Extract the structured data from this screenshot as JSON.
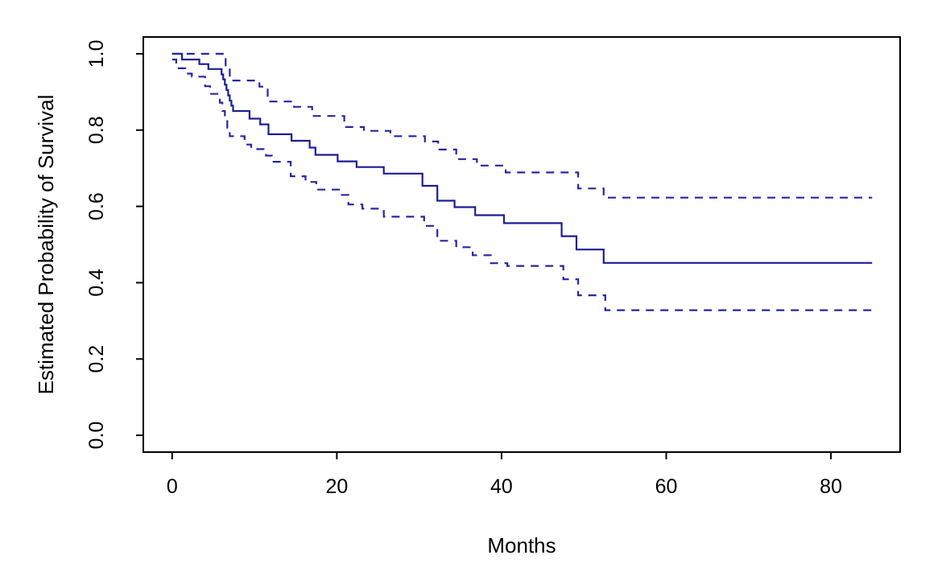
{
  "chart_data": {
    "type": "line",
    "subtype": "kaplan-meier-step-curve",
    "title": "",
    "xlabel": "Months",
    "ylabel": "Estimated Probability of Survival",
    "x_ticks": [
      0,
      20,
      40,
      60,
      80
    ],
    "y_ticks": [
      "0.0",
      "0.2",
      "0.4",
      "0.6",
      "0.8",
      "1.0"
    ],
    "xlim": [
      -3.5,
      88.4
    ],
    "ylim": [
      -0.044,
      1.044
    ],
    "x_axis_range_shown": [
      0,
      80
    ],
    "y_axis_range_shown": [
      0.0,
      1.0
    ],
    "end_of_follow_up_months": 85,
    "grid": false,
    "legend": null,
    "colors": {
      "curve": "#1d1d96",
      "ci": "#2626a6",
      "axis": "#000000",
      "background": "#ffffff"
    },
    "series": [
      {
        "name": "Kaplan-Meier survival estimate",
        "style": "solid",
        "x": [
          0,
          1.2,
          3.3,
          4.4,
          6.0,
          6.2,
          6.4,
          6.6,
          6.8,
          7.0,
          7.2,
          7.4,
          9.4,
          10.7,
          11.7,
          14.5,
          16.7,
          17.4,
          20.1,
          22.4,
          25.7,
          30.4,
          32.2,
          34.3,
          36.8,
          40.3,
          47.3,
          49.1,
          52.4
        ],
        "y": [
          1.0,
          0.985,
          0.973,
          0.96,
          0.946,
          0.933,
          0.919,
          0.905,
          0.891,
          0.877,
          0.864,
          0.85,
          0.83,
          0.815,
          0.789,
          0.772,
          0.754,
          0.735,
          0.718,
          0.703,
          0.686,
          0.654,
          0.615,
          0.598,
          0.577,
          0.556,
          0.522,
          0.487,
          0.452
        ],
        "final_value": 0.452
      },
      {
        "name": "Upper 95% confidence band",
        "style": "dashed",
        "x": [
          0,
          6.5,
          7.0,
          10.6,
          11.6,
          14.8,
          17.0,
          20.9,
          23.3,
          26.5,
          30.7,
          32.3,
          34.5,
          37.0,
          40.5,
          49.3,
          52.4
        ],
        "y": [
          1.0,
          0.965,
          0.93,
          0.914,
          0.875,
          0.861,
          0.837,
          0.808,
          0.798,
          0.784,
          0.77,
          0.749,
          0.724,
          0.707,
          0.689,
          0.647,
          0.623
        ],
        "final_value": 0.623
      },
      {
        "name": "Lower 95% confidence band",
        "style": "dashed",
        "x": [
          0,
          0.5,
          1.6,
          2.4,
          4.0,
          4.6,
          5.8,
          6.1,
          6.4,
          6.7,
          7.0,
          8.8,
          9.6,
          11.4,
          12.1,
          14.4,
          16.2,
          17.5,
          20.4,
          21.4,
          23.1,
          25.7,
          30.6,
          32.2,
          34.5,
          36.5,
          38.7,
          40.7,
          47.5,
          49.3,
          52.6
        ],
        "y": [
          0.985,
          0.962,
          0.948,
          0.94,
          0.915,
          0.895,
          0.872,
          0.85,
          0.828,
          0.806,
          0.784,
          0.762,
          0.75,
          0.733,
          0.717,
          0.679,
          0.664,
          0.644,
          0.63,
          0.605,
          0.594,
          0.573,
          0.549,
          0.51,
          0.493,
          0.472,
          0.451,
          0.444,
          0.409,
          0.367,
          0.328
        ],
        "final_value": 0.328
      }
    ]
  }
}
